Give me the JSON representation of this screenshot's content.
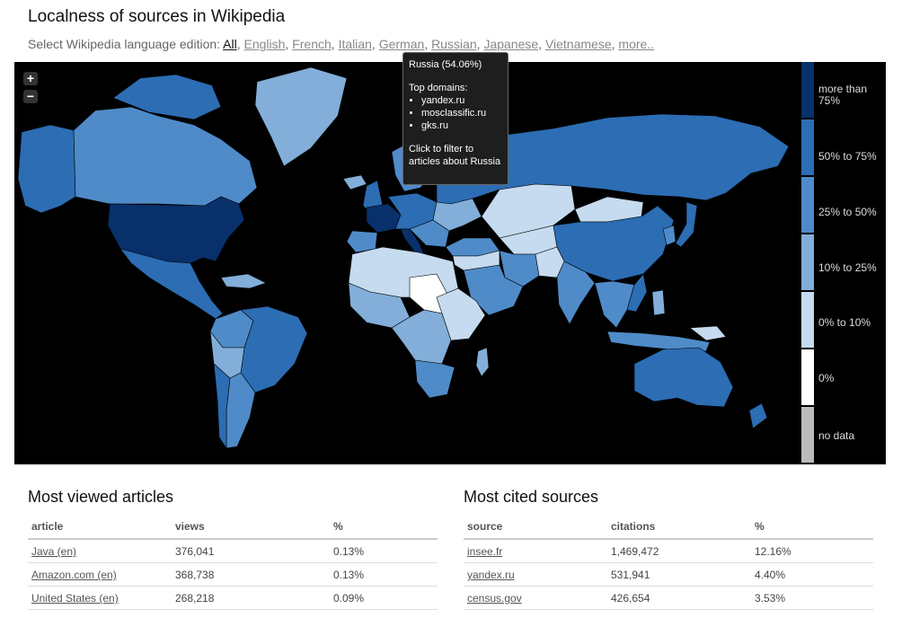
{
  "page": {
    "title": "Localness of sources in Wikipedia"
  },
  "language_selector": {
    "prefix": "Select Wikipedia language edition:",
    "options": [
      {
        "label": "All",
        "active": true
      },
      {
        "label": "English",
        "active": false
      },
      {
        "label": "French",
        "active": false
      },
      {
        "label": "Italian",
        "active": false
      },
      {
        "label": "German",
        "active": false
      },
      {
        "label": "Russian",
        "active": false
      },
      {
        "label": "Japanese",
        "active": false
      },
      {
        "label": "Vietnamese",
        "active": false
      },
      {
        "label": "more..",
        "active": false
      }
    ]
  },
  "map": {
    "zoom_in": "+",
    "zoom_out": "−",
    "colors": {
      "more_than_75": "#08306b",
      "50_to_75": "#2c6db4",
      "25_to_50": "#4f8bc8",
      "10_to_25": "#82aed9",
      "0_to_10": "#c6dbef",
      "zero": "#ffffff",
      "no_data": "#bbbbbb"
    },
    "legend": [
      {
        "label": "more than 75%",
        "color": "#08306b"
      },
      {
        "label": "50% to 75%",
        "color": "#2c6db4"
      },
      {
        "label": "25% to 50%",
        "color": "#4f8bc8"
      },
      {
        "label": "10% to 25%",
        "color": "#82aed9"
      },
      {
        "label": "0% to 10%",
        "color": "#c6dbef"
      },
      {
        "label": "0%",
        "color": "#ffffff"
      },
      {
        "label": "no data",
        "color": "#bbbbbb"
      }
    ],
    "tooltip": {
      "heading": "Russia (54.06%)",
      "domains_label": "Top domains:",
      "domains": [
        "yandex.ru",
        "mosclassific.ru",
        "gks.ru"
      ],
      "cta": "Click to filter to articles about Russia"
    }
  },
  "most_viewed": {
    "title": "Most viewed articles",
    "columns": [
      "article",
      "views",
      "%"
    ],
    "rows": [
      {
        "article": "Java (en)",
        "views": "376,041",
        "pct": "0.13%"
      },
      {
        "article": "Amazon.com (en)",
        "views": "368,738",
        "pct": "0.13%"
      },
      {
        "article": "United States (en)",
        "views": "268,218",
        "pct": "0.09%"
      }
    ]
  },
  "most_cited": {
    "title": "Most cited sources",
    "columns": [
      "source",
      "citations",
      "%"
    ],
    "rows": [
      {
        "source": "insee.fr",
        "citations": "1,469,472",
        "pct": "12.16%"
      },
      {
        "source": "yandex.ru",
        "citations": "531,941",
        "pct": "4.40%"
      },
      {
        "source": "census.gov",
        "citations": "426,654",
        "pct": "3.53%"
      }
    ]
  }
}
